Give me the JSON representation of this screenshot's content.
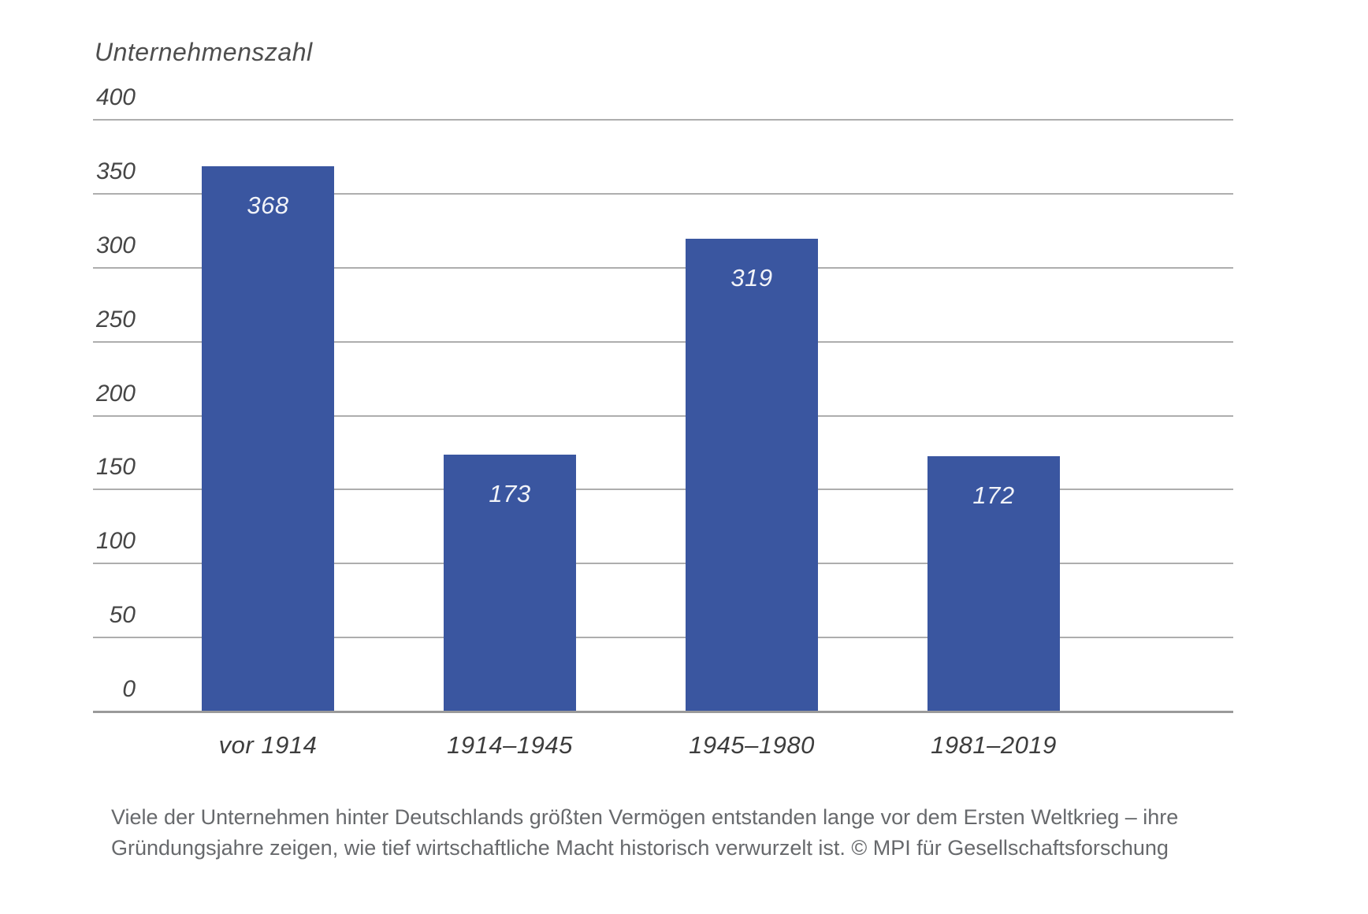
{
  "chart_data": {
    "type": "bar",
    "title": "Unternehmenszahl",
    "categories": [
      "vor 1914",
      "1914–1945",
      "1945–1980",
      "1981–2019"
    ],
    "values": [
      368,
      173,
      319,
      172
    ],
    "xlabel": "",
    "ylabel": "Unternehmenszahl",
    "ylim": [
      0,
      400
    ],
    "yticks": [
      0,
      50,
      100,
      150,
      200,
      250,
      300,
      350,
      400
    ],
    "grid": true,
    "legend": "none",
    "bar_color": "#3a56a0",
    "value_label_color": "#f1f3f8",
    "gridline_color": "#aeaeae"
  },
  "caption": {
    "line1": "Viele der Unternehmen hinter Deutschlands größten Vermögen entstanden lange vor dem Ersten Weltkrieg – ihre",
    "line2": "Gründungsjahre zeigen, wie tief wirtschaftliche Macht historisch verwurzelt ist. © MPI für Gesellschaftsforschung"
  }
}
